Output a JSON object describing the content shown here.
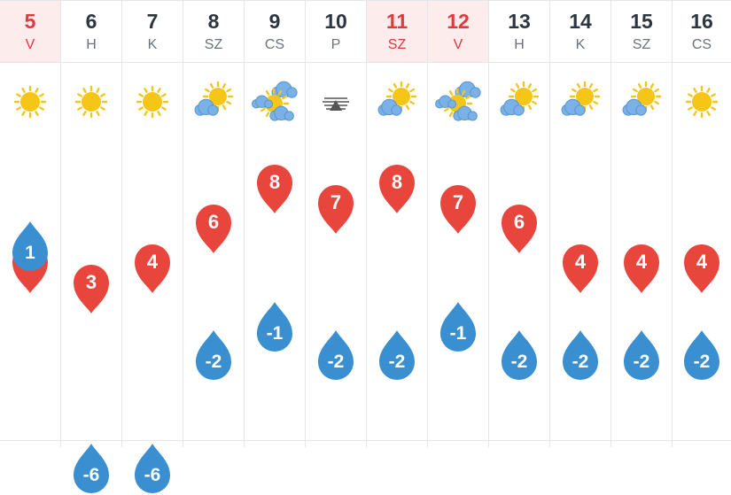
{
  "colors": {
    "high_pin": "#e8453c",
    "low_drop": "#3a8fd0",
    "weekend_text": "#e2383f",
    "weekend_bg": "#fdecec",
    "sun": "#f5c518",
    "cloud": "#7ab2e8"
  },
  "days": [
    {
      "day": "5",
      "abbr": "V",
      "weekend": true,
      "icon": "sun-icon",
      "high": "4",
      "low": "1"
    },
    {
      "day": "6",
      "abbr": "H",
      "weekend": false,
      "icon": "sun-icon",
      "high": "3",
      "low": "-6"
    },
    {
      "day": "7",
      "abbr": "K",
      "weekend": false,
      "icon": "sun-icon",
      "high": "4",
      "low": "-6"
    },
    {
      "day": "8",
      "abbr": "SZ",
      "weekend": false,
      "icon": "sun-behind-cloud-icon",
      "high": "6",
      "low": "-2"
    },
    {
      "day": "9",
      "abbr": "CS",
      "weekend": false,
      "icon": "partly-cloudy-icon",
      "high": "8",
      "low": "-1"
    },
    {
      "day": "10",
      "abbr": "P",
      "weekend": false,
      "icon": "fog-icon",
      "high": "7",
      "low": "-2"
    },
    {
      "day": "11",
      "abbr": "SZ",
      "weekend": true,
      "icon": "sun-behind-cloud-icon",
      "high": "8",
      "low": "-2"
    },
    {
      "day": "12",
      "abbr": "V",
      "weekend": true,
      "icon": "partly-cloudy-icon",
      "high": "7",
      "low": "-1"
    },
    {
      "day": "13",
      "abbr": "H",
      "weekend": false,
      "icon": "sun-behind-cloud-icon",
      "high": "6",
      "low": "-2"
    },
    {
      "day": "14",
      "abbr": "K",
      "weekend": false,
      "icon": "sun-behind-cloud-icon",
      "high": "4",
      "low": "-2"
    },
    {
      "day": "15",
      "abbr": "SZ",
      "weekend": false,
      "icon": "sun-behind-cloud-icon",
      "high": "4",
      "low": "-2"
    },
    {
      "day": "16",
      "abbr": "CS",
      "weekend": false,
      "icon": "sun-icon",
      "high": "4",
      "low": "-2"
    }
  ]
}
